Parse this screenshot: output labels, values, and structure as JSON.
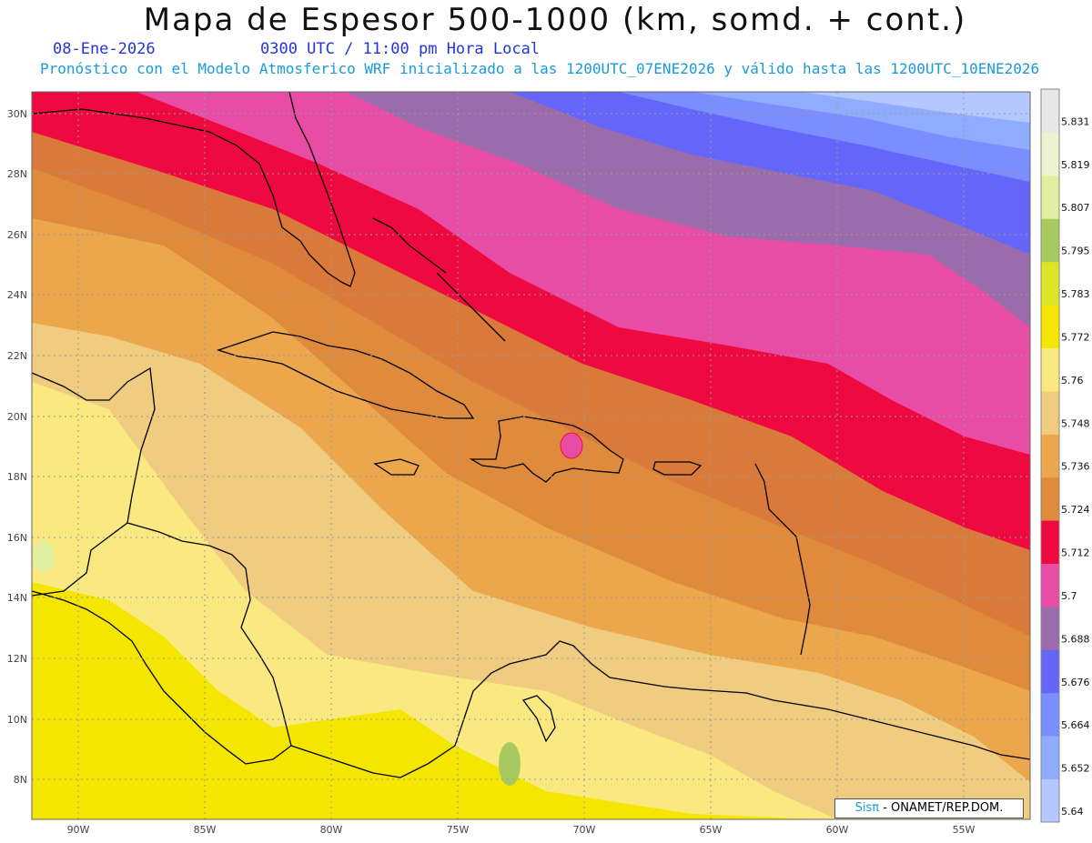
{
  "header": {
    "title": "Mapa de Espesor 500-1000 (km, somd. + cont.)",
    "date": "08-Ene-2026",
    "time": "0300 UTC / 11:00 pm Hora Local",
    "subtitle": "Pronóstico con el Modelo Atmosferico WRF inicializado a las 1200UTC_07ENE2026 y válido hasta las  1200UTC_10ENE2026"
  },
  "map": {
    "lat_labels": [
      "30N",
      "28N",
      "26N",
      "24N",
      "22N",
      "20N",
      "18N",
      "16N",
      "14N",
      "12N",
      "10N",
      "8N"
    ],
    "lon_labels": [
      "90W",
      "85W",
      "80W",
      "75W",
      "70W",
      "65W",
      "60W",
      "55W"
    ]
  },
  "legend": {
    "labels": [
      "5.831",
      "5.819",
      "5.807",
      "5.795",
      "5.783",
      "5.772",
      "5.76",
      "5.748",
      "5.736",
      "5.724",
      "5.712",
      "5.7",
      "5.688",
      "5.676",
      "5.664",
      "5.652",
      "5.64"
    ],
    "colors": [
      "#e8e8e8",
      "#eef3cf",
      "#e0f0a0",
      "#a8c860",
      "#dce626",
      "#f5e600",
      "#fae880",
      "#f0cc80",
      "#eca64c",
      "#e08a3c",
      "#ee0a40",
      "#e84da6",
      "#9a6cac",
      "#6466fa",
      "#7a8eff",
      "#90acff",
      "#b4c8ff"
    ]
  },
  "watermark": {
    "logo": "Sisπ",
    "text": " - ONAMET/REP.DOM."
  },
  "icons": {
    "watermark_logo": "sispi-logo"
  }
}
